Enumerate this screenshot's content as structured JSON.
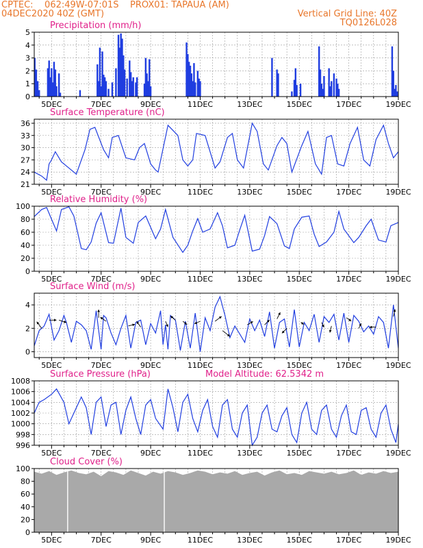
{
  "header": {
    "line1_left": "CPTEC:    062:49W-07:01S    PROX01: TAPAUA (AM)",
    "line2_left": "04DEC2020 40Z (GMT)",
    "line1_right": "Vertical Grid Line: 40Z",
    "line2_right": "TQ0126L028"
  },
  "colors": {
    "header": "#e8762a",
    "title": "#e0208a",
    "line": "#1f3de0",
    "bar": "#1f3de0",
    "cloud": "#a9a9a9",
    "wind": "#000000",
    "grid": "#9a9a9a"
  },
  "x_tick_labels": [
    "5DEC",
    "7DEC",
    "9DEC",
    "11DEC",
    "13DEC",
    "15DEC",
    "17DEC",
    "19DEC"
  ],
  "x_range_days": [
    4.3,
    19.0
  ],
  "chart_data": [
    {
      "type": "bar",
      "title": "Precipitation (mm/h)",
      "ylim": [
        0,
        5
      ],
      "yticks": [
        0,
        1,
        2,
        3,
        4,
        5
      ],
      "x_day": [
        4.32,
        4.38,
        4.44,
        4.5,
        4.85,
        4.9,
        4.95,
        5.0,
        5.05,
        5.1,
        5.15,
        5.2,
        5.3,
        5.35,
        6.15,
        6.85,
        6.9,
        6.95,
        7.0,
        7.05,
        7.1,
        7.15,
        7.2,
        7.3,
        7.45,
        7.6,
        7.7,
        7.75,
        7.8,
        7.85,
        7.9,
        7.95,
        8.05,
        8.15,
        8.2,
        8.25,
        8.3,
        8.4,
        8.45,
        8.75,
        8.8,
        8.85,
        8.9,
        8.95,
        9.0,
        10.45,
        10.5,
        10.55,
        10.6,
        10.65,
        10.7,
        10.75,
        10.8,
        10.9,
        10.95,
        11.0,
        13.9,
        14.1,
        14.15,
        14.7,
        14.8,
        14.85,
        14.9,
        15.05,
        15.8,
        15.85,
        15.9,
        15.95,
        16.0,
        16.2,
        16.25,
        16.3,
        16.4,
        16.5,
        16.55,
        16.6,
        18.75,
        18.8,
        18.85,
        18.9,
        18.95
      ],
      "values": [
        3.0,
        2.1,
        1.2,
        0.5,
        2.2,
        2.8,
        1.5,
        2.2,
        1.1,
        2.7,
        2.1,
        0.8,
        1.8,
        0.3,
        0.5,
        2.5,
        1.2,
        3.8,
        0.8,
        3.5,
        1.7,
        1.5,
        1.2,
        0.6,
        1.1,
        2.2,
        4.8,
        3.8,
        4.9,
        4.5,
        3.2,
        2.1,
        1.4,
        2.8,
        1.9,
        1.2,
        1.5,
        1.1,
        1.5,
        1.0,
        3.0,
        1.8,
        1.2,
        2.9,
        0.8,
        4.2,
        3.3,
        2.7,
        2.4,
        1.8,
        1.2,
        2.6,
        1.1,
        2.0,
        1.4,
        1.2,
        3.0,
        2.1,
        1.8,
        0.4,
        1.3,
        2.2,
        0.9,
        1.0,
        3.9,
        2.1,
        1.0,
        0.6,
        1.6,
        2.2,
        0.8,
        1.2,
        1.8,
        1.4,
        1.0,
        0.6,
        3.9,
        2.0,
        0.6,
        0.9,
        0.4
      ]
    },
    {
      "type": "line",
      "title": "Surface Temperature (nC)",
      "ylim": [
        21,
        37
      ],
      "yticks": [
        21,
        24,
        27,
        30,
        33,
        36
      ],
      "x": [
        4.3,
        4.6,
        4.8,
        4.9,
        5.0,
        5.15,
        5.4,
        5.7,
        6.0,
        6.35,
        6.55,
        6.75,
        7.1,
        7.3,
        7.45,
        7.7,
        8.0,
        8.35,
        8.55,
        8.75,
        9.0,
        9.2,
        9.3,
        9.7,
        10.1,
        10.3,
        10.5,
        10.7,
        10.85,
        11.2,
        11.6,
        11.8,
        12.1,
        12.3,
        12.5,
        12.75,
        13.1,
        13.3,
        13.55,
        13.75,
        14.1,
        14.3,
        14.5,
        14.7,
        15.1,
        15.35,
        15.65,
        15.9,
        16.1,
        16.3,
        16.55,
        16.8,
        17.05,
        17.35,
        17.6,
        17.85,
        18.1,
        18.4,
        18.6,
        18.8,
        19.0
      ],
      "y": [
        24.0,
        23.0,
        22.0,
        26.0,
        27.0,
        29.0,
        26.5,
        25.0,
        23.5,
        29.5,
        34.5,
        35.0,
        29.5,
        27.5,
        32.5,
        33.0,
        27.5,
        27.0,
        30.0,
        31.0,
        26.0,
        24.5,
        24.0,
        35.5,
        33.0,
        27.0,
        25.5,
        27.0,
        33.5,
        33.0,
        25.0,
        26.5,
        32.5,
        33.5,
        27.0,
        25.0,
        36.0,
        34.0,
        26.0,
        24.5,
        30.5,
        32.5,
        31.0,
        24.0,
        30.5,
        34.0,
        26.0,
        23.5,
        32.5,
        33.0,
        26.0,
        25.5,
        31.0,
        35.0,
        27.0,
        25.5,
        32.0,
        35.5,
        31.0,
        27.5,
        29.0
      ]
    },
    {
      "type": "line",
      "title": "Relative Humidity (%)",
      "ylim": [
        0,
        100
      ],
      "yticks": [
        0,
        20,
        40,
        60,
        80,
        100
      ],
      "x": [
        4.3,
        4.6,
        4.8,
        5.0,
        5.2,
        5.4,
        5.7,
        5.9,
        6.2,
        6.4,
        6.6,
        6.8,
        7.0,
        7.3,
        7.5,
        7.8,
        8.0,
        8.3,
        8.5,
        8.8,
        9.2,
        9.4,
        9.6,
        9.9,
        10.3,
        10.5,
        10.7,
        10.9,
        11.1,
        11.4,
        11.7,
        11.9,
        12.1,
        12.4,
        12.6,
        12.8,
        13.1,
        13.4,
        13.6,
        13.8,
        14.1,
        14.4,
        14.6,
        14.8,
        15.1,
        15.4,
        15.6,
        15.8,
        16.1,
        16.4,
        16.6,
        16.8,
        17.2,
        17.4,
        17.7,
        17.9,
        18.2,
        18.5,
        18.7,
        19.0
      ],
      "y": [
        84,
        95,
        98,
        80,
        62,
        95,
        99,
        85,
        35,
        33,
        45,
        74,
        90,
        44,
        43,
        97,
        52,
        43,
        75,
        85,
        50,
        65,
        95,
        52,
        29,
        40,
        62,
        81,
        60,
        65,
        90,
        70,
        36,
        40,
        64,
        86,
        31,
        34,
        55,
        84,
        73,
        39,
        35,
        65,
        83,
        85,
        57,
        38,
        45,
        60,
        92,
        65,
        44,
        52,
        70,
        80,
        48,
        45,
        70,
        75
      ]
    },
    {
      "type": "line",
      "title": "Surface Wind (m/s)",
      "ylim": [
        -0.5,
        5.0
      ],
      "yticks": [
        0,
        2,
        4
      ],
      "x": [
        4.3,
        4.5,
        4.7,
        4.9,
        5.1,
        5.3,
        5.5,
        5.6,
        5.8,
        6.0,
        6.2,
        6.4,
        6.6,
        6.8,
        7.0,
        7.1,
        7.2,
        7.4,
        7.6,
        7.8,
        8.0,
        8.2,
        8.4,
        8.6,
        8.8,
        9.0,
        9.2,
        9.4,
        9.5,
        9.6,
        9.7,
        9.8,
        10.0,
        10.2,
        10.4,
        10.6,
        10.8,
        11.0,
        11.2,
        11.4,
        11.6,
        11.8,
        12.0,
        12.2,
        12.4,
        12.6,
        12.8,
        13.0,
        13.2,
        13.4,
        13.6,
        13.8,
        14.0,
        14.2,
        14.4,
        14.6,
        14.8,
        15.0,
        15.2,
        15.4,
        15.6,
        15.8,
        16.0,
        16.2,
        16.4,
        16.6,
        16.8,
        17.0,
        17.2,
        17.4,
        17.6,
        17.8,
        18.0,
        18.2,
        18.4,
        18.6,
        18.8,
        19.0
      ],
      "y": [
        0.5,
        1.8,
        2.2,
        3.2,
        1.0,
        1.8,
        3.1,
        2.5,
        0.8,
        2.6,
        2.3,
        1.8,
        0.2,
        3.5,
        0.2,
        3.1,
        2.9,
        1.6,
        0.6,
        2.0,
        3.1,
        0.3,
        2.5,
        2.7,
        0.6,
        2.4,
        1.6,
        3.5,
        0.6,
        2.3,
        0.2,
        3.1,
        2.7,
        0.1,
        2.6,
        0.3,
        3.3,
        0.0,
        2.9,
        1.8,
        3.8,
        4.7,
        3.1,
        1.2,
        2.2,
        1.5,
        0.8,
        2.8,
        1.8,
        2.7,
        1.3,
        3.4,
        0.3,
        2.5,
        2.8,
        0.4,
        3.6,
        0.4,
        2.5,
        1.8,
        3.2,
        0.8,
        3.0,
        2.5,
        3.2,
        1.0,
        3.3,
        0.8,
        3.1,
        2.6,
        1.7,
        2.2,
        1.5,
        3.0,
        2.5,
        0.3,
        4.0,
        0.3
      ]
    },
    {
      "type": "line",
      "title": "Surface Pressure (hPa)",
      "annotation": "Model Altitude: 62.5342 m",
      "ylim": [
        996,
        1008
      ],
      "yticks": [
        996,
        998,
        1000,
        1002,
        1004,
        1006,
        1008
      ],
      "x": [
        4.3,
        4.5,
        4.7,
        5.0,
        5.2,
        5.5,
        5.7,
        6.0,
        6.2,
        6.4,
        6.6,
        6.8,
        7.0,
        7.2,
        7.4,
        7.6,
        7.8,
        8.0,
        8.2,
        8.4,
        8.6,
        8.8,
        9.0,
        9.2,
        9.5,
        9.7,
        9.9,
        10.1,
        10.3,
        10.5,
        10.7,
        10.9,
        11.1,
        11.3,
        11.5,
        11.7,
        11.9,
        12.1,
        12.3,
        12.5,
        12.7,
        12.9,
        13.1,
        13.3,
        13.5,
        13.7,
        13.9,
        14.1,
        14.3,
        14.5,
        14.7,
        14.9,
        15.1,
        15.3,
        15.5,
        15.7,
        15.9,
        16.1,
        16.3,
        16.5,
        16.7,
        16.9,
        17.1,
        17.3,
        17.5,
        17.7,
        17.9,
        18.1,
        18.3,
        18.5,
        18.7,
        18.9,
        19.0
      ],
      "y": [
        1002,
        1004,
        1004.5,
        1005.5,
        1006.5,
        1004,
        1000,
        1003,
        1005,
        1003,
        998,
        1004,
        1005,
        999.5,
        1003.5,
        1004,
        998,
        1002.5,
        1005,
        1001,
        998,
        1003.5,
        1004.5,
        1001,
        999,
        1006.5,
        1003,
        998.5,
        1004,
        1005.5,
        1001,
        998.5,
        1002.5,
        1004.5,
        999.5,
        997.5,
        1003.5,
        1004.5,
        999,
        997.5,
        1002,
        1003.5,
        996,
        997.5,
        1002,
        1003.5,
        999,
        998.5,
        1001.5,
        1003,
        998,
        996.5,
        1002,
        1004,
        999,
        998,
        1002.5,
        1003.5,
        999,
        997.5,
        1001.5,
        1003.5,
        998.5,
        998,
        1002.5,
        1003,
        999,
        997.5,
        1002,
        1003.5,
        999,
        996.5,
        1000
      ]
    },
    {
      "type": "area",
      "title": "Cloud Cover (%)",
      "ylim": [
        0,
        100
      ],
      "yticks": [
        0,
        20,
        40,
        60,
        80,
        100
      ],
      "x": [
        4.3,
        4.6,
        4.9,
        5.2,
        5.5,
        5.8,
        6.1,
        6.4,
        6.7,
        7.0,
        7.3,
        7.6,
        7.9,
        8.2,
        8.5,
        8.8,
        9.1,
        9.4,
        9.7,
        10.0,
        10.3,
        10.6,
        10.9,
        11.2,
        11.5,
        11.8,
        12.1,
        12.4,
        12.7,
        13.0,
        13.3,
        13.6,
        13.9,
        14.2,
        14.5,
        14.8,
        15.1,
        15.4,
        15.7,
        16.0,
        16.3,
        16.6,
        16.9,
        17.2,
        17.5,
        17.8,
        18.1,
        18.4,
        18.7,
        19.0
      ],
      "y": [
        95,
        92,
        96,
        90,
        94,
        97,
        93,
        91,
        95,
        88,
        96,
        94,
        90,
        97,
        93,
        89,
        95,
        92,
        96,
        94,
        90,
        93,
        97,
        95,
        91,
        94,
        92,
        96,
        90,
        93,
        95,
        89,
        94,
        97,
        91,
        93,
        90,
        96,
        94,
        92,
        95,
        91,
        93,
        97,
        90,
        94,
        92,
        96,
        93,
        95
      ]
    }
  ]
}
